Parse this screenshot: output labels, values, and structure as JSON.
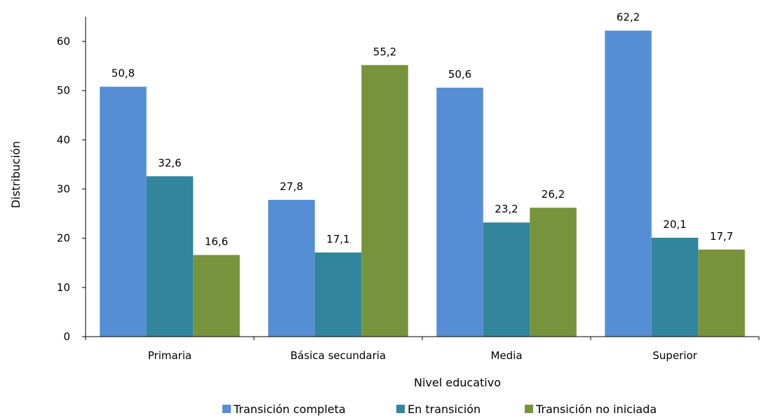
{
  "chart_data": {
    "type": "bar",
    "title": "",
    "xlabel": "Nivel educativo",
    "ylabel": "Distribución",
    "ylim": [
      0,
      65
    ],
    "yticks": [
      0,
      10,
      20,
      30,
      40,
      50,
      60
    ],
    "grid": false,
    "legend_position": "bottom",
    "categories": [
      "Primaria",
      "Básica secundaria",
      "Media",
      "Superior"
    ],
    "series": [
      {
        "name": "Transición completa",
        "color": "#558ed5",
        "values": [
          50.8,
          27.8,
          50.6,
          62.2
        ],
        "labels": [
          "50,8",
          "27,8",
          "50,6",
          "62,2"
        ]
      },
      {
        "name": "En transición",
        "color": "#31859c",
        "values": [
          32.6,
          17.1,
          23.2,
          20.1
        ],
        "labels": [
          "32,6",
          "17,1",
          "23,2",
          "20,1"
        ]
      },
      {
        "name": "Transición no iniciada",
        "color": "#77933c",
        "values": [
          16.6,
          55.2,
          26.2,
          17.7
        ],
        "labels": [
          "16,6",
          "55,2",
          "26,2",
          "17,7"
        ]
      }
    ]
  }
}
